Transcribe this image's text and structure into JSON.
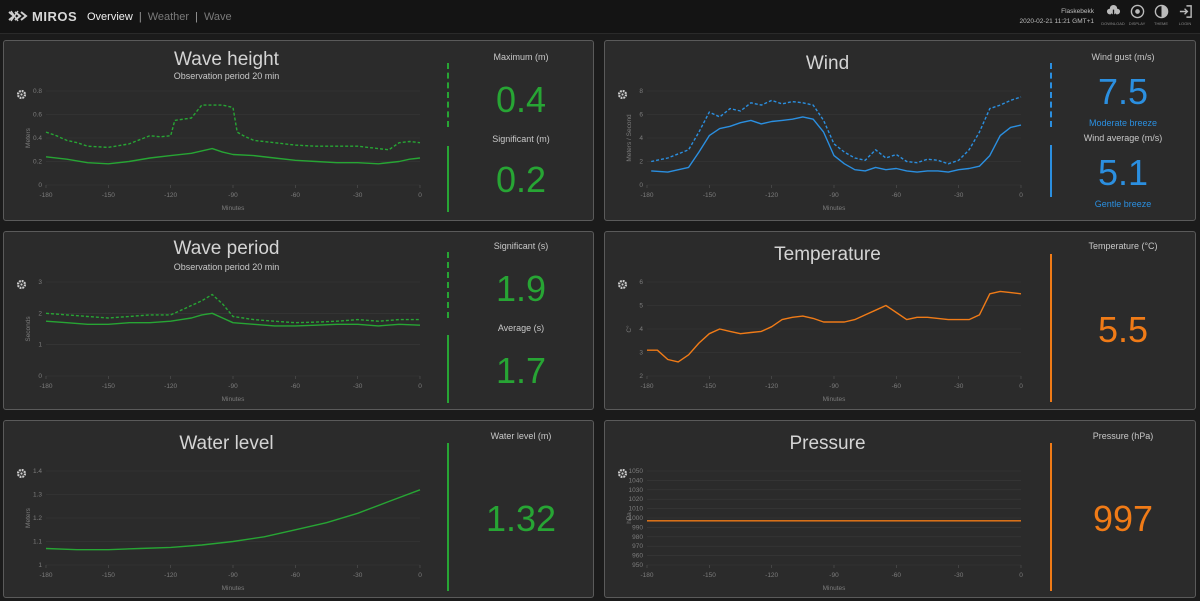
{
  "app": {
    "brand": "MIROS",
    "nav": [
      {
        "label": "Overview"
      },
      {
        "label": "Weather"
      },
      {
        "label": "Wave"
      }
    ],
    "station": "Flaskebekk",
    "datetime": "2020-02-21 11:21 GMT+1",
    "tools": [
      {
        "label": "DOWNLOAD",
        "icon": "cloud-download-icon"
      },
      {
        "label": "DISPLAY",
        "icon": "display-icon"
      },
      {
        "label": "THEME",
        "icon": "theme-icon"
      },
      {
        "label": "LOGIN",
        "icon": "login-icon"
      }
    ]
  },
  "panels": {
    "wave_height": {
      "title": "Wave height",
      "subtitle": "Observation period 20 min",
      "y_label": "Meters",
      "x_label": "Minutes",
      "yticks": [
        "0.8",
        "0.6",
        "0.4",
        "0.2",
        "0"
      ],
      "xticks": [
        "-180",
        "-150",
        "-120",
        "-90",
        "-60",
        "-30",
        "0"
      ],
      "values": [
        {
          "label": "Maximum (m)",
          "value": "0.4"
        },
        {
          "label": "Significant (m)",
          "value": "0.2"
        }
      ]
    },
    "wave_period": {
      "title": "Wave period",
      "subtitle": "Observation period 20 min",
      "y_label": "Seconds",
      "x_label": "Minutes",
      "yticks": [
        "3",
        "2",
        "1",
        "0"
      ],
      "xticks": [
        "-180",
        "-150",
        "-120",
        "-90",
        "-60",
        "-30",
        "0"
      ],
      "values": [
        {
          "label": "Significant (s)",
          "value": "1.9"
        },
        {
          "label": "Average (s)",
          "value": "1.7"
        }
      ]
    },
    "water_level": {
      "title": "Water level",
      "y_label": "Meters",
      "x_label": "Minutes",
      "yticks": [
        "1.4",
        "1.3",
        "1.2",
        "1.1",
        "1"
      ],
      "xticks": [
        "-180",
        "-150",
        "-120",
        "-90",
        "-60",
        "-30",
        "0"
      ],
      "values": [
        {
          "label": "Water level (m)",
          "value": "1.32"
        }
      ]
    },
    "wind": {
      "title": "Wind",
      "y_label": "Meters / Second",
      "x_label": "Minutes",
      "yticks": [
        "8",
        "6",
        "4",
        "2",
        "0"
      ],
      "xticks": [
        "-180",
        "-150",
        "-120",
        "-90",
        "-60",
        "-30",
        "0"
      ],
      "values": [
        {
          "label": "Wind gust (m/s)",
          "value": "7.5",
          "desc": "Moderate breeze"
        },
        {
          "label": "Wind average (m/s)",
          "value": "5.1",
          "desc": "Gentle breeze"
        }
      ]
    },
    "temperature": {
      "title": "Temperature",
      "y_label": "C°",
      "x_label": "Minutes",
      "yticks": [
        "6",
        "5",
        "4",
        "3",
        "2"
      ],
      "xticks": [
        "-180",
        "-150",
        "-120",
        "-90",
        "-60",
        "-30",
        "0"
      ],
      "values": [
        {
          "label": "Temperature (°C)",
          "value": "5.5"
        }
      ]
    },
    "pressure": {
      "title": "Pressure",
      "y_label": "hPa",
      "x_label": "Minutes",
      "yticks": [
        "1050",
        "1040",
        "1030",
        "1020",
        "1010",
        "1000",
        "990",
        "980",
        "970",
        "960",
        "950"
      ],
      "xticks": [
        "-180",
        "-150",
        "-120",
        "-90",
        "-60",
        "-30",
        "0"
      ],
      "values": [
        {
          "label": "Pressure (hPa)",
          "value": "997"
        }
      ]
    }
  },
  "colors": {
    "green": "#27a534",
    "blue": "#2b8fe0",
    "orange": "#f07b17",
    "panel_bg": "#2b2b2b",
    "page_bg": "#1b1b1b"
  },
  "chart_data": [
    {
      "id": "wave_height",
      "type": "line",
      "xlabel": "Minutes",
      "ylabel": "Meters",
      "xlim": [
        -180,
        0
      ],
      "ylim": [
        0,
        0.8
      ],
      "series": [
        {
          "name": "Maximum",
          "style": "dashed",
          "x": [
            -180,
            -175,
            -170,
            -165,
            -160,
            -150,
            -140,
            -130,
            -125,
            -120,
            -118,
            -110,
            -105,
            -100,
            -95,
            -90,
            -88,
            -85,
            -80,
            -70,
            -60,
            -50,
            -40,
            -30,
            -20,
            -15,
            -10,
            -5,
            0
          ],
          "y": [
            0.45,
            0.42,
            0.38,
            0.36,
            0.33,
            0.32,
            0.35,
            0.42,
            0.41,
            0.42,
            0.55,
            0.57,
            0.68,
            0.68,
            0.68,
            0.66,
            0.45,
            0.42,
            0.38,
            0.36,
            0.34,
            0.33,
            0.33,
            0.33,
            0.31,
            0.3,
            0.36,
            0.37,
            0.36
          ]
        },
        {
          "name": "Significant",
          "style": "solid",
          "x": [
            -180,
            -170,
            -160,
            -150,
            -140,
            -130,
            -120,
            -110,
            -105,
            -100,
            -95,
            -90,
            -80,
            -70,
            -60,
            -50,
            -40,
            -30,
            -20,
            -10,
            -5,
            0
          ],
          "y": [
            0.24,
            0.22,
            0.19,
            0.18,
            0.2,
            0.23,
            0.25,
            0.27,
            0.29,
            0.31,
            0.28,
            0.26,
            0.25,
            0.23,
            0.21,
            0.2,
            0.19,
            0.19,
            0.18,
            0.2,
            0.22,
            0.23
          ]
        }
      ]
    },
    {
      "id": "wave_period",
      "type": "line",
      "xlabel": "Minutes",
      "ylabel": "Seconds",
      "xlim": [
        -180,
        0
      ],
      "ylim": [
        0,
        3
      ],
      "series": [
        {
          "name": "Significant",
          "style": "dashed",
          "x": [
            -180,
            -170,
            -160,
            -150,
            -140,
            -130,
            -120,
            -115,
            -110,
            -105,
            -100,
            -95,
            -90,
            -85,
            -80,
            -70,
            -60,
            -50,
            -40,
            -30,
            -20,
            -10,
            0
          ],
          "y": [
            2.0,
            1.95,
            1.9,
            1.85,
            1.9,
            1.95,
            1.95,
            2.1,
            2.25,
            2.4,
            2.6,
            2.3,
            1.9,
            1.85,
            1.8,
            1.75,
            1.7,
            1.72,
            1.75,
            1.8,
            1.75,
            1.8,
            1.8
          ]
        },
        {
          "name": "Average",
          "style": "solid",
          "x": [
            -180,
            -170,
            -160,
            -150,
            -140,
            -130,
            -120,
            -115,
            -110,
            -105,
            -100,
            -95,
            -90,
            -80,
            -70,
            -60,
            -50,
            -40,
            -30,
            -20,
            -10,
            0
          ],
          "y": [
            1.75,
            1.7,
            1.65,
            1.65,
            1.7,
            1.7,
            1.75,
            1.8,
            1.85,
            1.95,
            2.0,
            1.85,
            1.7,
            1.65,
            1.6,
            1.6,
            1.62,
            1.65,
            1.65,
            1.6,
            1.65,
            1.62
          ]
        }
      ]
    },
    {
      "id": "water_level",
      "type": "line",
      "xlabel": "Minutes",
      "ylabel": "Meters",
      "xlim": [
        -180,
        0
      ],
      "ylim": [
        1.0,
        1.4
      ],
      "series": [
        {
          "name": "Water level",
          "style": "solid",
          "x": [
            -180,
            -165,
            -150,
            -135,
            -120,
            -105,
            -90,
            -75,
            -60,
            -45,
            -30,
            -15,
            0
          ],
          "y": [
            1.07,
            1.065,
            1.065,
            1.07,
            1.075,
            1.085,
            1.1,
            1.12,
            1.15,
            1.18,
            1.22,
            1.27,
            1.32
          ]
        }
      ]
    },
    {
      "id": "wind",
      "type": "line",
      "xlabel": "Minutes",
      "ylabel": "Meters / Second",
      "xlim": [
        -180,
        0
      ],
      "ylim": [
        0,
        8
      ],
      "series": [
        {
          "name": "Wind gust",
          "style": "dashed",
          "x": [
            -178,
            -170,
            -160,
            -155,
            -150,
            -145,
            -140,
            -135,
            -130,
            -125,
            -120,
            -115,
            -110,
            -105,
            -100,
            -95,
            -90,
            -85,
            -80,
            -75,
            -70,
            -65,
            -60,
            -55,
            -50,
            -45,
            -40,
            -35,
            -30,
            -25,
            -20,
            -15,
            -10,
            -5,
            0
          ],
          "y": [
            2.0,
            2.3,
            3.0,
            4.5,
            6.2,
            5.8,
            6.5,
            6.3,
            7.0,
            6.8,
            7.2,
            6.9,
            7.1,
            7.0,
            6.8,
            5.5,
            3.5,
            2.8,
            2.3,
            2.1,
            3.0,
            2.3,
            2.6,
            2.0,
            1.9,
            2.2,
            2.1,
            1.8,
            2.1,
            3.0,
            4.5,
            6.5,
            6.8,
            7.2,
            7.5
          ]
        },
        {
          "name": "Wind average",
          "style": "solid",
          "x": [
            -178,
            -170,
            -160,
            -155,
            -150,
            -145,
            -140,
            -135,
            -130,
            -125,
            -120,
            -115,
            -110,
            -105,
            -100,
            -95,
            -90,
            -85,
            -80,
            -75,
            -70,
            -65,
            -60,
            -55,
            -50,
            -45,
            -40,
            -35,
            -30,
            -25,
            -20,
            -15,
            -10,
            -5,
            0
          ],
          "y": [
            1.2,
            1.1,
            1.5,
            2.8,
            4.2,
            4.8,
            5.0,
            5.3,
            5.5,
            5.2,
            5.4,
            5.5,
            5.6,
            5.8,
            5.6,
            4.5,
            2.5,
            1.8,
            1.3,
            1.2,
            1.5,
            1.3,
            1.4,
            1.2,
            1.1,
            1.2,
            1.2,
            1.1,
            1.3,
            1.4,
            1.6,
            2.5,
            4.2,
            4.9,
            5.1
          ]
        }
      ]
    },
    {
      "id": "temperature",
      "type": "line",
      "xlabel": "Minutes",
      "ylabel": "C°",
      "xlim": [
        -180,
        0
      ],
      "ylim": [
        2,
        6
      ],
      "series": [
        {
          "name": "Temperature",
          "style": "solid",
          "x": [
            -180,
            -175,
            -170,
            -165,
            -160,
            -155,
            -150,
            -145,
            -140,
            -135,
            -130,
            -125,
            -120,
            -115,
            -110,
            -105,
            -100,
            -95,
            -90,
            -85,
            -80,
            -75,
            -70,
            -65,
            -60,
            -55,
            -50,
            -45,
            -40,
            -35,
            -30,
            -25,
            -20,
            -15,
            -10,
            -5,
            0
          ],
          "y": [
            3.1,
            3.1,
            2.7,
            2.6,
            2.9,
            3.4,
            3.8,
            4.0,
            3.9,
            3.8,
            3.85,
            3.9,
            4.1,
            4.4,
            4.5,
            4.55,
            4.45,
            4.3,
            4.3,
            4.3,
            4.4,
            4.6,
            4.8,
            5.0,
            4.7,
            4.4,
            4.5,
            4.5,
            4.45,
            4.4,
            4.4,
            4.4,
            4.6,
            5.5,
            5.6,
            5.55,
            5.5
          ]
        }
      ]
    },
    {
      "id": "pressure",
      "type": "line",
      "xlabel": "Minutes",
      "ylabel": "hPa",
      "xlim": [
        -180,
        0
      ],
      "ylim": [
        950,
        1050
      ],
      "series": [
        {
          "name": "Pressure",
          "style": "solid",
          "x": [
            -180,
            -150,
            -120,
            -90,
            -60,
            -30,
            0
          ],
          "y": [
            997,
            997,
            997,
            997,
            997,
            997,
            997
          ]
        }
      ]
    }
  ]
}
